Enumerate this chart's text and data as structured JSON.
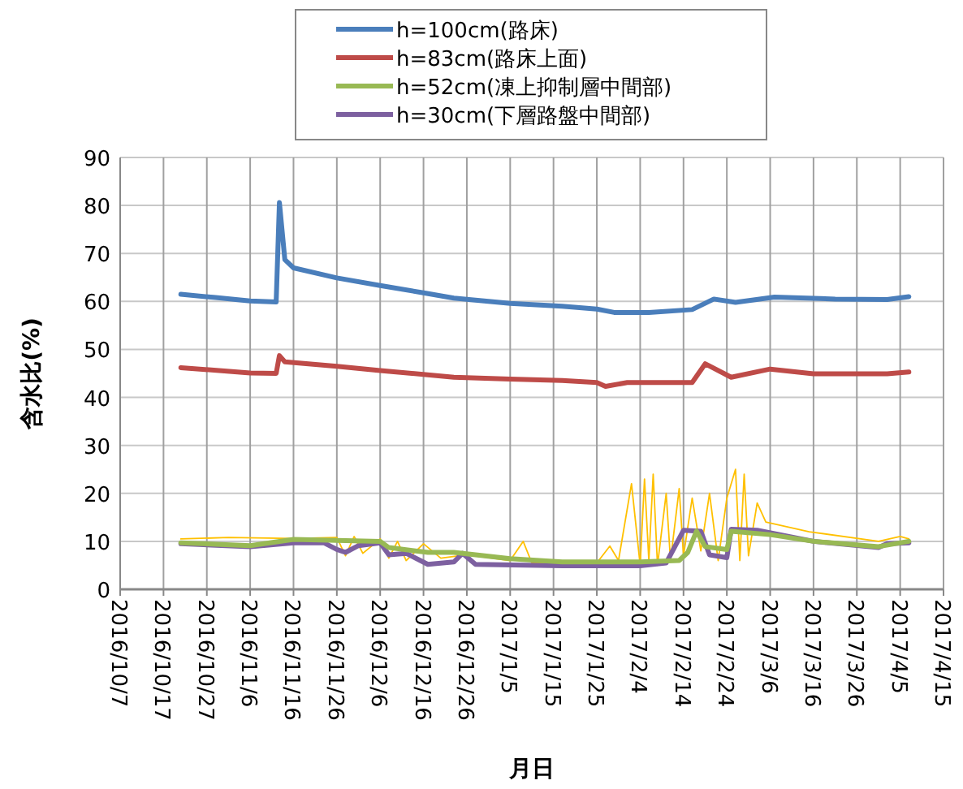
{
  "chart_data": {
    "type": "line",
    "xlabel": "月日",
    "ylabel": "含水比(%)",
    "xlim": [
      "2016-10-07",
      "2017-04-15"
    ],
    "ylim": [
      0,
      90
    ],
    "xticks": [
      {
        "value": "2016-10-07",
        "label": "2016/10/7"
      },
      {
        "value": "2016-10-17",
        "label": "2016/10/17"
      },
      {
        "value": "2016-10-27",
        "label": "2016/10/27"
      },
      {
        "value": "2016-11-06",
        "label": "2016/11/6"
      },
      {
        "value": "2016-11-16",
        "label": "2016/11/16"
      },
      {
        "value": "2016-11-26",
        "label": "2016/11/26"
      },
      {
        "value": "2016-12-06",
        "label": "2016/12/6"
      },
      {
        "value": "2016-12-16",
        "label": "2016/12/16"
      },
      {
        "value": "2016-12-26",
        "label": "2016/12/26"
      },
      {
        "value": "2017-01-05",
        "label": "2017/1/5"
      },
      {
        "value": "2017-01-15",
        "label": "2017/1/15"
      },
      {
        "value": "2017-01-25",
        "label": "2017/1/25"
      },
      {
        "value": "2017-02-04",
        "label": "2017/2/4"
      },
      {
        "value": "2017-02-14",
        "label": "2017/2/14"
      },
      {
        "value": "2017-02-24",
        "label": "2017/2/24"
      },
      {
        "value": "2017-03-06",
        "label": "2017/3/6"
      },
      {
        "value": "2017-03-16",
        "label": "2017/3/16"
      },
      {
        "value": "2017-03-26",
        "label": "2017/3/26"
      },
      {
        "value": "2017-04-05",
        "label": "2017/4/5"
      },
      {
        "value": "2017-04-15",
        "label": "2017/4/15"
      }
    ],
    "yticks": [
      0,
      10,
      20,
      30,
      40,
      50,
      60,
      70,
      80,
      90
    ],
    "grid": true,
    "legend": "top",
    "marker": "none",
    "series": [
      {
        "name": "h=100cm(路床)",
        "color": "#4a7ebb",
        "x": [
          "2016-10-21",
          "2016-10-29",
          "2016-11-06",
          "2016-11-12",
          "2016-11-12T18:00",
          "2016-11-14",
          "2016-11-16",
          "2016-11-26",
          "2016-12-06",
          "2016-12-16",
          "2016-12-23",
          "2017-01-05",
          "2017-01-17",
          "2017-01-25",
          "2017-01-29",
          "2017-02-06",
          "2017-02-16",
          "2017-02-21",
          "2017-02-26",
          "2017-03-07",
          "2017-03-21",
          "2017-04-02",
          "2017-04-07"
        ],
        "values": [
          61.5,
          60.8,
          60.1,
          59.9,
          80.6,
          68.7,
          67,
          64.9,
          63.3,
          61.8,
          60.7,
          59.6,
          59,
          58.4,
          57.7,
          57.7,
          58.3,
          60.5,
          59.8,
          60.9,
          60.5,
          60.4,
          61
        ]
      },
      {
        "name": "h=83cm(路床上面)",
        "color": "#be4b48",
        "x": [
          "2016-10-21",
          "2016-11-06",
          "2016-11-12",
          "2016-11-12T18:00",
          "2016-11-14",
          "2016-11-26",
          "2016-12-06",
          "2016-12-23",
          "2017-01-05",
          "2017-01-17",
          "2017-01-25",
          "2017-01-27",
          "2017-02-01",
          "2017-02-16",
          "2017-02-19",
          "2017-02-25",
          "2017-03-06",
          "2017-03-16",
          "2017-04-02",
          "2017-04-07"
        ],
        "values": [
          46.2,
          45.1,
          45,
          48.7,
          47.4,
          46.5,
          45.6,
          44.2,
          43.8,
          43.5,
          43.1,
          42.3,
          43.1,
          43.1,
          47,
          44.2,
          45.9,
          44.9,
          44.9,
          45.3
        ]
      },
      {
        "name": "h=52cm(凍上抑制層中間部)",
        "color": "#98b954",
        "x": [
          "2016-10-21",
          "2016-11-06",
          "2016-11-16",
          "2016-12-06",
          "2016-12-08",
          "2016-12-17",
          "2016-12-23",
          "2017-01-05",
          "2017-01-17",
          "2017-02-04",
          "2017-02-13",
          "2017-02-15",
          "2017-02-17",
          "2017-02-19",
          "2017-02-24",
          "2017-02-25",
          "2017-03-06",
          "2017-03-16",
          "2017-03-31",
          "2017-04-07"
        ],
        "values": [
          9.7,
          9.1,
          10.4,
          10,
          8.7,
          7.7,
          7.7,
          6.4,
          5.7,
          5.7,
          6,
          7.7,
          12.1,
          8.9,
          8.3,
          12.1,
          11.4,
          10,
          8.9,
          10
        ]
      },
      {
        "name": "h=30cm(下層路盤中間部)",
        "color": "#7d60a0",
        "x": [
          "2016-10-21",
          "2016-11-06",
          "2016-11-16",
          "2016-11-23",
          "2016-11-26",
          "2016-11-28",
          "2016-12-01",
          "2016-12-06",
          "2016-12-08",
          "2016-12-12",
          "2016-12-17",
          "2016-12-23",
          "2016-12-25",
          "2016-12-28",
          "2017-01-17",
          "2017-02-04",
          "2017-02-10",
          "2017-02-14",
          "2017-02-18",
          "2017-02-20",
          "2017-02-24",
          "2017-02-25",
          "2017-03-03",
          "2017-03-16",
          "2017-03-31",
          "2017-04-02",
          "2017-04-07"
        ],
        "values": [
          9.5,
          8.9,
          9.7,
          9.7,
          8.3,
          7.7,
          9.1,
          9.7,
          7.2,
          7.5,
          5.2,
          5.7,
          7.5,
          5.2,
          4.9,
          4.9,
          5.5,
          12.3,
          12.1,
          7.2,
          6.6,
          12.5,
          12.3,
          10,
          8.7,
          9.5,
          9.7
        ]
      },
      {
        "color": "#ffc000",
        "x": [
          "2016-10-21",
          "2016-11-01",
          "2016-11-16",
          "2016-11-26",
          "2016-11-28",
          "2016-11-30",
          "2016-12-02",
          "2016-12-06",
          "2016-12-08",
          "2016-12-10",
          "2016-12-12",
          "2016-12-16",
          "2016-12-20",
          "2016-12-26",
          "2017-01-05",
          "2017-01-08",
          "2017-01-10",
          "2017-01-17",
          "2017-01-25",
          "2017-01-28",
          "2017-01-30",
          "2017-02-02",
          "2017-02-04",
          "2017-02-05",
          "2017-02-06",
          "2017-02-07",
          "2017-02-08",
          "2017-02-10",
          "2017-02-11",
          "2017-02-13",
          "2017-02-14",
          "2017-02-16",
          "2017-02-18",
          "2017-02-20",
          "2017-02-22",
          "2017-02-24",
          "2017-02-26",
          "2017-02-27",
          "2017-02-28",
          "2017-03-01",
          "2017-03-03",
          "2017-03-05",
          "2017-03-15",
          "2017-03-31",
          "2017-04-05",
          "2017-04-07"
        ],
        "values": [
          10.5,
          10.8,
          10.6,
          10.8,
          7,
          11,
          7.5,
          10.5,
          6.5,
          10,
          6,
          9.5,
          6.5,
          7.2,
          6,
          10,
          5.5,
          5.5,
          5.5,
          9,
          6,
          22,
          5,
          23,
          6,
          24,
          5,
          20,
          6,
          21,
          7,
          19,
          8,
          20,
          6,
          19,
          25,
          6,
          24,
          7,
          18,
          14,
          12,
          10,
          11,
          10.5
        ]
      }
    ]
  }
}
